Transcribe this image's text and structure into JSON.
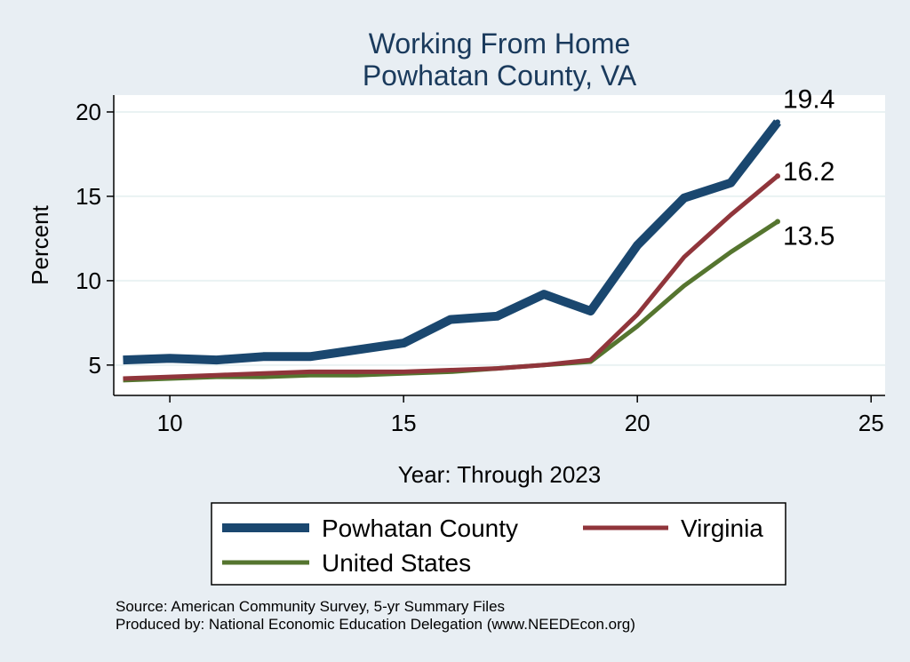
{
  "chart_data": {
    "type": "line",
    "title": "Working From Home",
    "subtitle": "Powhatan County, VA",
    "xlabel": "Year: Through 2023",
    "ylabel": "Percent",
    "xlim": [
      8.8,
      25.3
    ],
    "ylim": [
      3.2,
      21.0
    ],
    "xticks": [
      10,
      15,
      20,
      25
    ],
    "yticks": [
      5,
      10,
      15,
      20
    ],
    "grid": true,
    "legend_position": "bottom",
    "x": [
      9,
      10,
      11,
      12,
      13,
      14,
      15,
      16,
      17,
      18,
      19,
      20,
      21,
      22,
      23
    ],
    "series": [
      {
        "name": "Powhatan County",
        "color": "#1a476f",
        "values": [
          5.3,
          5.4,
          5.3,
          5.5,
          5.5,
          5.9,
          6.3,
          7.7,
          7.9,
          9.2,
          8.2,
          12.1,
          14.9,
          15.8,
          19.4
        ],
        "end_label": "19.4"
      },
      {
        "name": "Virginia",
        "color": "#90353b",
        "values": [
          4.2,
          4.3,
          4.4,
          4.5,
          4.6,
          4.6,
          4.6,
          4.7,
          4.8,
          5.0,
          5.3,
          8.0,
          11.4,
          13.9,
          16.2
        ],
        "end_label": "16.2"
      },
      {
        "name": "United States",
        "color": "#55752f",
        "values": [
          4.1,
          4.2,
          4.3,
          4.3,
          4.4,
          4.4,
          4.5,
          4.6,
          4.8,
          5.0,
          5.2,
          7.3,
          9.7,
          11.7,
          13.5
        ],
        "end_label": "13.5"
      }
    ]
  },
  "notes": {
    "source": "Source: American Community Survey, 5-yr Summary Files",
    "produced_by": "Produced by: National Economic Education Delegation (www.NEEDEcon.org)"
  }
}
